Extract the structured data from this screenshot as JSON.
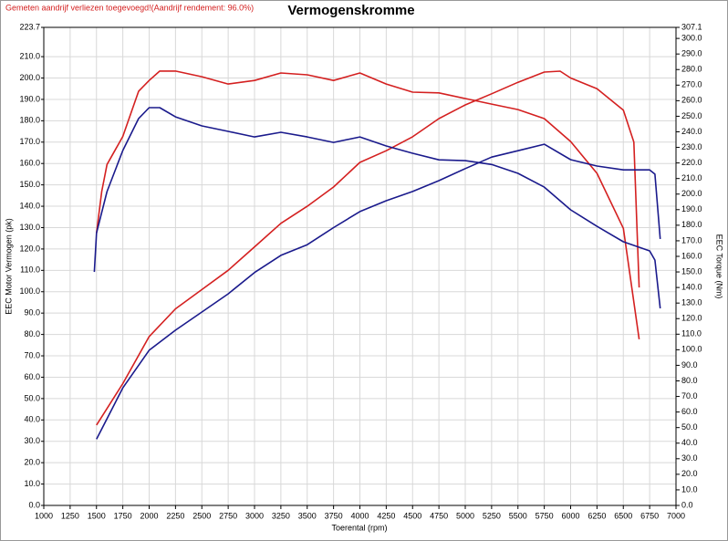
{
  "chart_data": {
    "type": "line",
    "title": "Vermogenskromme",
    "subtitle": "Gemeten aandrijf verliezen toegevoegd!(Aandrijf rendement: 96.0%)",
    "xlabel": "Toerental (rpm)",
    "ylabel": "EEC Motor Vermogen (pk)",
    "y2label": "EEC Torque (Nm)",
    "grid": true,
    "xlim": [
      1000,
      7000
    ],
    "xticks": [
      1000,
      1250,
      1500,
      1750,
      2000,
      2250,
      2500,
      2750,
      3000,
      3250,
      3500,
      3750,
      4000,
      4250,
      4500,
      4750,
      5000,
      5250,
      5500,
      5750,
      6000,
      6250,
      6500,
      6750,
      7000
    ],
    "ylim": [
      0,
      223.7
    ],
    "yticks": [
      {
        "value": 0,
        "label": "0.0"
      },
      {
        "value": 10,
        "label": "10.0"
      },
      {
        "value": 20,
        "label": "20.0"
      },
      {
        "value": 30,
        "label": "30.0"
      },
      {
        "value": 40,
        "label": "40.0"
      },
      {
        "value": 50,
        "label": "50.0"
      },
      {
        "value": 60,
        "label": "60.0"
      },
      {
        "value": 70,
        "label": "70.0"
      },
      {
        "value": 80,
        "label": "80.0"
      },
      {
        "value": 90,
        "label": "90.0"
      },
      {
        "value": 100,
        "label": "100.0"
      },
      {
        "value": 110,
        "label": "110.0"
      },
      {
        "value": 120,
        "label": "120.0"
      },
      {
        "value": 130,
        "label": "130.0"
      },
      {
        "value": 140,
        "label": "140.0"
      },
      {
        "value": 150,
        "label": "150.0"
      },
      {
        "value": 160,
        "label": "160.0"
      },
      {
        "value": 170,
        "label": "170.0"
      },
      {
        "value": 180,
        "label": "180.0"
      },
      {
        "value": 190,
        "label": "190.0"
      },
      {
        "value": 200,
        "label": "200.0"
      },
      {
        "value": 210,
        "label": "210.0"
      },
      223.7
    ],
    "y2lim": [
      0,
      307.1
    ],
    "y2ticks": [
      {
        "value": 0,
        "label": "0.0"
      },
      {
        "value": 10,
        "label": "10.0"
      },
      {
        "value": 20,
        "label": "20.0"
      },
      {
        "value": 30,
        "label": "30.0"
      },
      {
        "value": 40,
        "label": "40.0"
      },
      {
        "value": 50,
        "label": "50.0"
      },
      {
        "value": 60,
        "label": "60.0"
      },
      {
        "value": 70,
        "label": "70.0"
      },
      {
        "value": 80,
        "label": "80.0"
      },
      {
        "value": 90,
        "label": "90.0"
      },
      {
        "value": 100,
        "label": "100.0"
      },
      {
        "value": 110,
        "label": "110.0"
      },
      {
        "value": 120,
        "label": "120.0"
      },
      {
        "value": 130,
        "label": "130.0"
      },
      {
        "value": 140,
        "label": "140.0"
      },
      {
        "value": 150,
        "label": "150.0"
      },
      {
        "value": 160,
        "label": "160.0"
      },
      {
        "value": 170,
        "label": "170.0"
      },
      {
        "value": 180,
        "label": "180.0"
      },
      {
        "value": 190,
        "label": "190.0"
      },
      {
        "value": 200,
        "label": "200.0"
      },
      {
        "value": 210,
        "label": "210.0"
      },
      {
        "value": 220,
        "label": "220.0"
      },
      {
        "value": 230,
        "label": "230.0"
      },
      {
        "value": 240,
        "label": "240.0"
      },
      {
        "value": 250,
        "label": "250.0"
      },
      {
        "value": 260,
        "label": "260.0"
      },
      {
        "value": 270,
        "label": "270.0"
      },
      {
        "value": 280,
        "label": "280.0"
      },
      {
        "value": 290,
        "label": "290.0"
      },
      {
        "value": 300,
        "label": "300.0"
      },
      307.1
    ],
    "series": [
      {
        "color": "#d42020",
        "axis": "y",
        "x": [
          1500,
          1750,
          2000,
          2250,
          2500,
          2750,
          3000,
          3250,
          3500,
          3750,
          4000,
          4250,
          4500,
          4750,
          5000,
          5250,
          5500,
          5750,
          5900,
          6000,
          6250,
          6500,
          6600,
          6650
        ],
        "values": [
          37.6,
          57,
          79,
          92,
          101,
          110,
          121,
          132,
          140,
          149,
          160.5,
          166,
          172.5,
          181,
          187.4,
          192.6,
          198,
          202.8,
          203.2,
          200,
          195,
          185,
          170,
          102
        ]
      },
      {
        "color": "#d42020",
        "axis": "y2",
        "x": [
          1500,
          1550,
          1600,
          1750,
          1900,
          2000,
          2100,
          2250,
          2500,
          2750,
          3000,
          3250,
          3500,
          3750,
          4000,
          4250,
          4500,
          4750,
          5000,
          5250,
          5500,
          5750,
          6000,
          6250,
          6500,
          6650
        ],
        "values": [
          175,
          201.6,
          219,
          237,
          266,
          273,
          279,
          279,
          275.4,
          270.7,
          273,
          277.8,
          276.6,
          273,
          277.8,
          270.7,
          265.5,
          265,
          261.4,
          257.8,
          254.3,
          248.5,
          233.8,
          213.3,
          178,
          106.7
        ]
      },
      {
        "color": "#1a1a8c",
        "axis": "y",
        "x": [
          1500,
          1750,
          2000,
          2250,
          2500,
          2750,
          3000,
          3250,
          3500,
          3750,
          4000,
          4250,
          4500,
          4750,
          5000,
          5250,
          5500,
          5750,
          6000,
          6250,
          6500,
          6750,
          6800,
          6850
        ],
        "values": [
          31,
          55,
          72.6,
          82,
          90.5,
          99,
          109,
          117,
          122,
          130,
          137.5,
          142.6,
          146.9,
          152,
          157.6,
          163,
          166,
          169,
          161.8,
          158.8,
          157,
          157,
          155,
          124.7
        ]
      },
      {
        "color": "#1a1a8c",
        "axis": "y2",
        "x": [
          1480,
          1500,
          1600,
          1750,
          1900,
          2000,
          2100,
          2250,
          2500,
          2750,
          3000,
          3250,
          3500,
          3750,
          4000,
          4250,
          4500,
          4750,
          5000,
          5250,
          5500,
          5750,
          6000,
          6250,
          6500,
          6750,
          6800,
          6850
        ],
        "values": [
          150,
          175,
          201.6,
          228,
          248.5,
          255.5,
          255.5,
          249.6,
          243.8,
          240.3,
          236.7,
          239.7,
          236.7,
          233.2,
          236.7,
          230.9,
          226.2,
          222,
          221.5,
          219,
          213.3,
          204.5,
          189.9,
          179.3,
          169.4,
          163.5,
          157.6,
          126.6
        ]
      }
    ]
  }
}
